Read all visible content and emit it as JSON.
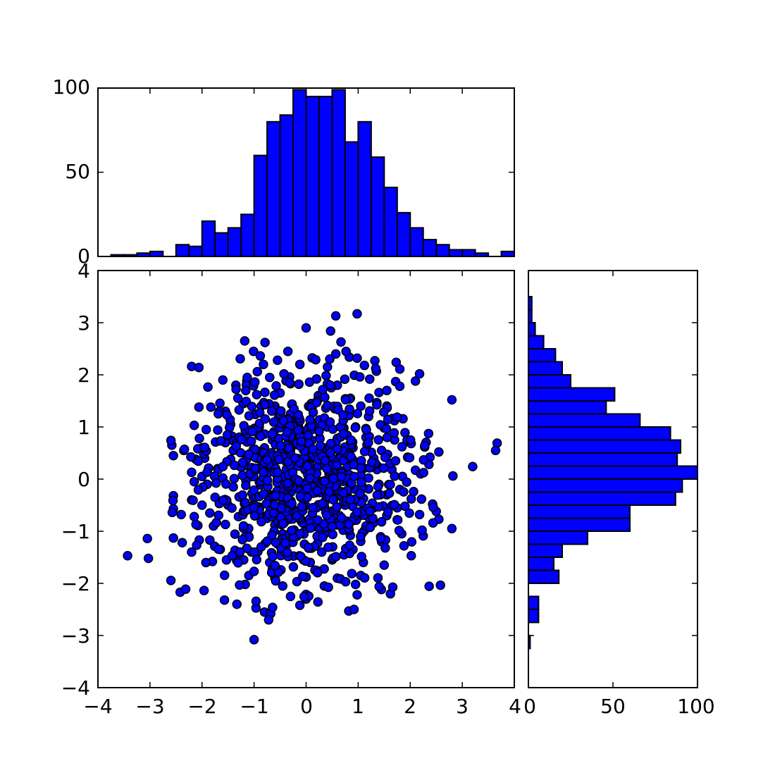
{
  "chart_data": [
    {
      "type": "scatter",
      "panel": "main",
      "xlim": [
        -4,
        4
      ],
      "ylim": [
        -4,
        4
      ],
      "xticks": [
        "−4",
        "−3",
        "−2",
        "−1",
        "0",
        "1",
        "2",
        "3",
        "4"
      ],
      "yticks": [
        "−4",
        "−3",
        "−2",
        "−1",
        "0",
        "1",
        "2",
        "3",
        "4"
      ],
      "grid": false,
      "color": "#0000ff",
      "marker": "circle",
      "n_points": 1000,
      "points": [
        [
          0.0,
          2.9
        ],
        [
          0.57,
          3.13
        ],
        [
          0.98,
          3.17
        ],
        [
          0.47,
          2.84
        ],
        [
          -1.18,
          2.65
        ],
        [
          -0.79,
          2.62
        ],
        [
          0.67,
          2.63
        ],
        [
          -0.35,
          2.45
        ],
        [
          -1.01,
          2.45
        ],
        [
          0.57,
          2.4
        ],
        [
          0.83,
          2.34
        ],
        [
          0.98,
          2.32
        ],
        [
          1.32,
          2.27
        ],
        [
          1.73,
          2.24
        ],
        [
          -2.2,
          2.16
        ],
        [
          -2.06,
          2.14
        ],
        [
          -0.82,
          2.2
        ],
        [
          -0.55,
          2.28
        ],
        [
          -0.12,
          2.2
        ],
        [
          0.41,
          2.15
        ],
        [
          1.12,
          2.18
        ],
        [
          1.8,
          2.11
        ],
        [
          2.1,
          1.88
        ],
        [
          1.35,
          2.07
        ],
        [
          -1.6,
          1.9
        ],
        [
          -1.14,
          1.88
        ],
        [
          -0.7,
          1.95
        ],
        [
          -0.3,
          1.83
        ],
        [
          0.2,
          1.92
        ],
        [
          0.6,
          1.8
        ],
        [
          1.72,
          1.87
        ],
        [
          1.8,
          1.78
        ],
        [
          2.8,
          1.52
        ],
        [
          -1.35,
          1.8
        ],
        [
          -0.95,
          1.62
        ],
        [
          -0.5,
          1.65
        ],
        [
          0.3,
          1.6
        ],
        [
          0.85,
          1.55
        ],
        [
          1.4,
          1.66
        ],
        [
          1.55,
          1.7
        ],
        [
          -2.06,
          1.38
        ],
        [
          -1.83,
          1.38
        ],
        [
          -1.2,
          1.45
        ],
        [
          -0.6,
          1.4
        ],
        [
          0.1,
          1.45
        ],
        [
          0.55,
          1.35
        ],
        [
          1.05,
          1.4
        ],
        [
          1.55,
          1.4
        ],
        [
          -1.55,
          1.3
        ],
        [
          -0.3,
          1.25
        ],
        [
          0.75,
          1.2
        ],
        [
          1.2,
          1.2
        ],
        [
          -2.15,
          1.03
        ],
        [
          -1.92,
          0.95
        ],
        [
          -1.45,
          1.05
        ],
        [
          -0.9,
          1.0
        ],
        [
          -0.2,
          1.1
        ],
        [
          0.4,
          1.0
        ],
        [
          0.95,
          1.0
        ],
        [
          1.5,
          0.98
        ],
        [
          1.9,
          0.89
        ],
        [
          -2.05,
          0.78
        ],
        [
          -1.55,
          0.7
        ],
        [
          -1.15,
          0.85
        ],
        [
          -0.65,
          0.75
        ],
        [
          0.0,
          0.8
        ],
        [
          0.6,
          0.78
        ],
        [
          1.15,
          0.8
        ],
        [
          1.7,
          0.75
        ],
        [
          1.95,
          0.72
        ],
        [
          -2.58,
          0.65
        ],
        [
          -2.35,
          0.55
        ],
        [
          -2.0,
          0.6
        ],
        [
          -1.4,
          0.55
        ],
        [
          -0.8,
          0.6
        ],
        [
          -0.3,
          0.55
        ],
        [
          0.35,
          0.6
        ],
        [
          0.9,
          0.6
        ],
        [
          1.45,
          0.55
        ],
        [
          2.55,
          0.52
        ],
        [
          3.67,
          0.69
        ],
        [
          3.64,
          0.55
        ],
        [
          -2.55,
          0.45
        ],
        [
          -2.12,
          0.38
        ],
        [
          -1.95,
          0.4
        ],
        [
          -1.45,
          0.38
        ],
        [
          -0.95,
          0.4
        ],
        [
          -0.4,
          0.35
        ],
        [
          0.2,
          0.4
        ],
        [
          0.75,
          0.38
        ],
        [
          1.3,
          0.4
        ],
        [
          1.95,
          0.42
        ],
        [
          2.38,
          0.42
        ],
        [
          -1.7,
          0.2
        ],
        [
          -1.2,
          0.25
        ],
        [
          -0.6,
          0.2
        ],
        [
          0.0,
          0.25
        ],
        [
          0.55,
          0.22
        ],
        [
          1.1,
          0.2
        ],
        [
          1.65,
          0.18
        ],
        [
          2.1,
          0.17
        ],
        [
          2.2,
          0.1
        ],
        [
          2.36,
          0.28
        ],
        [
          3.2,
          0.24
        ],
        [
          2.82,
          0.06
        ],
        [
          -2.2,
          0.13
        ],
        [
          -2.0,
          0.05
        ],
        [
          -1.6,
          0.02
        ],
        [
          -1.05,
          0.05
        ],
        [
          -0.5,
          0.02
        ],
        [
          0.1,
          0.0
        ],
        [
          0.65,
          0.05
        ],
        [
          1.2,
          0.02
        ],
        [
          1.85,
          0.05
        ],
        [
          -2.15,
          -0.05
        ],
        [
          -1.9,
          -0.1
        ],
        [
          -1.4,
          -0.15
        ],
        [
          -0.85,
          -0.1
        ],
        [
          -0.3,
          -0.12
        ],
        [
          0.3,
          -0.1
        ],
        [
          0.85,
          -0.15
        ],
        [
          1.4,
          -0.1
        ],
        [
          1.8,
          -0.2
        ],
        [
          -2.55,
          -0.32
        ],
        [
          -2.2,
          -0.4
        ],
        [
          -1.75,
          -0.35
        ],
        [
          -1.25,
          -0.35
        ],
        [
          -0.7,
          -0.3
        ],
        [
          -0.1,
          -0.35
        ],
        [
          0.5,
          -0.3
        ],
        [
          1.05,
          -0.35
        ],
        [
          1.55,
          -0.3
        ],
        [
          2.02,
          -0.38
        ],
        [
          -2.55,
          -0.57
        ],
        [
          -2.0,
          -0.5
        ],
        [
          -1.5,
          -0.5
        ],
        [
          -0.95,
          -0.55
        ],
        [
          -0.4,
          -0.5
        ],
        [
          0.2,
          -0.55
        ],
        [
          0.75,
          -0.5
        ],
        [
          1.3,
          -0.55
        ],
        [
          1.9,
          -0.52
        ],
        [
          1.75,
          -0.55
        ],
        [
          2.43,
          -0.48
        ],
        [
          -2.15,
          -0.72
        ],
        [
          -1.85,
          -0.65
        ],
        [
          -1.3,
          -0.72
        ],
        [
          -0.75,
          -0.7
        ],
        [
          -0.2,
          -0.72
        ],
        [
          0.45,
          -0.7
        ],
        [
          1.0,
          -0.72
        ],
        [
          1.55,
          -0.7
        ],
        [
          2.18,
          -0.68
        ],
        [
          2.5,
          -0.62
        ],
        [
          -2.4,
          -0.68
        ],
        [
          -2.08,
          -0.89
        ],
        [
          -1.78,
          -0.9
        ],
        [
          -1.55,
          -0.87
        ],
        [
          -1.2,
          -0.9
        ],
        [
          -0.6,
          -0.88
        ],
        [
          0.0,
          -0.9
        ],
        [
          0.6,
          -0.88
        ],
        [
          1.15,
          -0.9
        ],
        [
          1.45,
          -0.82
        ],
        [
          1.75,
          -0.78
        ],
        [
          2.55,
          -0.77
        ],
        [
          2.8,
          -0.95
        ],
        [
          -2.55,
          -1.13
        ],
        [
          -2.38,
          -1.22
        ],
        [
          -1.85,
          -1.17
        ],
        [
          -1.1,
          -1.1
        ],
        [
          -0.45,
          -1.05
        ],
        [
          0.25,
          -1.1
        ],
        [
          0.85,
          -1.08
        ],
        [
          1.45,
          -1.2
        ],
        [
          2.25,
          -1.09
        ],
        [
          -3.05,
          -1.14
        ],
        [
          -3.43,
          -1.47
        ],
        [
          -3.03,
          -1.52
        ],
        [
          -2.2,
          -1.4
        ],
        [
          -1.65,
          -1.35
        ],
        [
          -1.05,
          -1.4
        ],
        [
          -0.4,
          -1.35
        ],
        [
          0.3,
          -1.4
        ],
        [
          0.9,
          -1.35
        ],
        [
          1.52,
          -1.32
        ],
        [
          1.88,
          -1.28
        ],
        [
          -1.8,
          -1.58
        ],
        [
          -1.53,
          -1.55
        ],
        [
          -1.2,
          -1.55
        ],
        [
          -0.7,
          -1.6
        ],
        [
          -0.05,
          -1.55
        ],
        [
          0.5,
          -1.55
        ],
        [
          1.1,
          -1.6
        ],
        [
          2.02,
          -1.47
        ],
        [
          -1.1,
          -1.85
        ],
        [
          -0.6,
          -1.9
        ],
        [
          0.0,
          -1.88
        ],
        [
          0.6,
          -1.9
        ],
        [
          1.05,
          -1.85
        ],
        [
          1.5,
          -1.65
        ],
        [
          -2.42,
          -2.17
        ],
        [
          -1.17,
          -2.02
        ],
        [
          -0.45,
          -2.05
        ],
        [
          0.35,
          -2.05
        ],
        [
          0.95,
          -2.02
        ],
        [
          1.62,
          -2.2
        ],
        [
          -0.3,
          -2.25
        ],
        [
          0.0,
          -2.3
        ],
        [
          0.98,
          -2.22
        ],
        [
          -0.12,
          -2.42
        ],
        [
          -1.33,
          -2.4
        ],
        [
          -0.8,
          -2.55
        ],
        [
          -0.68,
          -2.58
        ],
        [
          -0.72,
          -2.7
        ],
        [
          0.82,
          -2.53
        ],
        [
          0.92,
          -2.5
        ],
        [
          -1.0,
          -3.08
        ]
      ]
    },
    {
      "type": "bar",
      "panel": "top-histogram",
      "orientation": "vertical",
      "bin_start": -3.75,
      "bin_width": 0.25,
      "values": [
        1,
        1,
        2,
        3,
        0,
        7,
        6,
        21,
        14,
        17,
        25,
        60,
        80,
        84,
        99,
        95,
        95,
        99,
        68,
        80,
        59,
        41,
        26,
        17,
        10,
        7,
        4,
        4,
        2,
        0,
        3
      ],
      "xlim": [
        -4,
        4
      ],
      "ylim": [
        0,
        100
      ],
      "yticks": [
        "0",
        "50",
        "100"
      ],
      "color": "#0000ff"
    },
    {
      "type": "bar",
      "panel": "right-histogram",
      "orientation": "horizontal",
      "bin_start": -3.25,
      "bin_width": 0.25,
      "values": [
        1,
        0,
        6,
        6,
        0,
        18,
        15,
        20,
        35,
        60,
        60,
        87,
        91,
        100,
        88,
        90,
        84,
        66,
        46,
        51,
        25,
        20,
        16,
        9,
        4,
        2,
        2
      ],
      "xlim": [
        0,
        100
      ],
      "ylim": [
        -4,
        4
      ],
      "xticks": [
        "0",
        "50",
        "100"
      ],
      "color": "#0000ff"
    }
  ]
}
